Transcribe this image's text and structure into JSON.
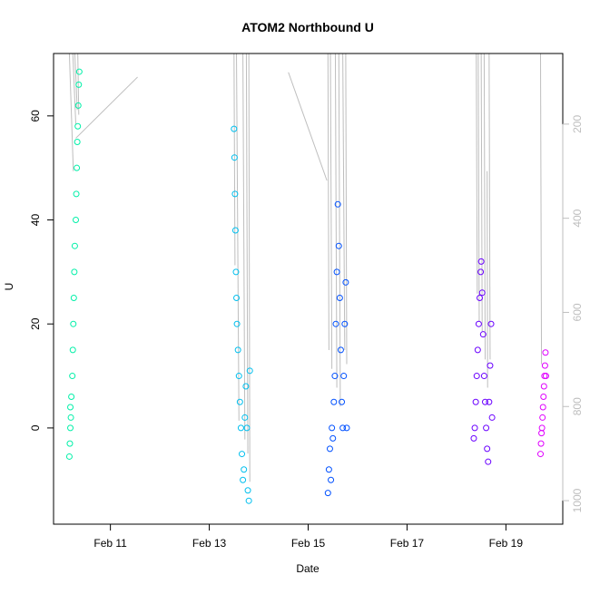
{
  "chart_data": {
    "type": "scatter",
    "title": "ATOM2 Northbound U",
    "xlabel": "Date",
    "ylabel": "U",
    "x_ticks": [
      "Feb 11",
      "Feb 13",
      "Feb 15",
      "Feb 17",
      "Feb 19"
    ],
    "x_tick_days": [
      11,
      13,
      15,
      17,
      19
    ],
    "xlim_days": [
      9.85,
      20.15
    ],
    "ylim": [
      -18.5,
      72
    ],
    "y_ticks": [
      0,
      20,
      40,
      60
    ],
    "y2_ticks": [
      200,
      400,
      600,
      800,
      1000
    ],
    "y2lim": [
      50,
      1050
    ],
    "grid": false,
    "legend": "none",
    "colors": {
      "axis": "#000000",
      "secondary_axis": "#bebebe",
      "secondary_lines": "#bebebe",
      "marker_fill": "none"
    },
    "series": [
      {
        "color": "#00f0a8",
        "points": [
          [
            10.17,
            -5.5
          ],
          [
            10.18,
            -3
          ],
          [
            10.19,
            0
          ],
          [
            10.2,
            2
          ],
          [
            10.19,
            4
          ],
          [
            10.21,
            6
          ],
          [
            10.23,
            10
          ],
          [
            10.24,
            15
          ],
          [
            10.25,
            20
          ],
          [
            10.26,
            25
          ],
          [
            10.27,
            30
          ],
          [
            10.28,
            35
          ],
          [
            10.3,
            40
          ],
          [
            10.31,
            45
          ],
          [
            10.32,
            50
          ],
          [
            10.33,
            55
          ],
          [
            10.34,
            58
          ],
          [
            10.35,
            62
          ],
          [
            10.36,
            66
          ],
          [
            10.37,
            68.5
          ]
        ]
      },
      {
        "color": "#00bfee",
        "points": [
          [
            13.5,
            57.5
          ],
          [
            13.51,
            52
          ],
          [
            13.52,
            45
          ],
          [
            13.53,
            38
          ],
          [
            13.54,
            30
          ],
          [
            13.55,
            25
          ],
          [
            13.56,
            20
          ],
          [
            13.58,
            15
          ],
          [
            13.6,
            10
          ],
          [
            13.62,
            5
          ],
          [
            13.64,
            0
          ],
          [
            13.66,
            -5
          ],
          [
            13.68,
            -10
          ],
          [
            13.7,
            -8
          ],
          [
            13.72,
            2
          ],
          [
            13.74,
            8
          ],
          [
            13.76,
            0
          ],
          [
            13.78,
            -12
          ],
          [
            13.8,
            -14
          ],
          [
            13.82,
            11
          ]
        ]
      },
      {
        "color": "#0050ff",
        "points": [
          [
            15.4,
            -12.5
          ],
          [
            15.42,
            -8
          ],
          [
            15.44,
            -4
          ],
          [
            15.46,
            -10
          ],
          [
            15.48,
            0
          ],
          [
            15.5,
            -2
          ],
          [
            15.52,
            5
          ],
          [
            15.54,
            10
          ],
          [
            15.56,
            20
          ],
          [
            15.58,
            30
          ],
          [
            15.6,
            43
          ],
          [
            15.62,
            35
          ],
          [
            15.64,
            25
          ],
          [
            15.66,
            15
          ],
          [
            15.68,
            5
          ],
          [
            15.7,
            0
          ],
          [
            15.72,
            10
          ],
          [
            15.74,
            20
          ],
          [
            15.76,
            28
          ],
          [
            15.78,
            0
          ]
        ]
      },
      {
        "color": "#6a00ff",
        "points": [
          [
            18.35,
            -2
          ],
          [
            18.37,
            0
          ],
          [
            18.39,
            5
          ],
          [
            18.41,
            10
          ],
          [
            18.43,
            15
          ],
          [
            18.45,
            20
          ],
          [
            18.47,
            25
          ],
          [
            18.49,
            30
          ],
          [
            18.5,
            32
          ],
          [
            18.52,
            26
          ],
          [
            18.54,
            18
          ],
          [
            18.56,
            10
          ],
          [
            18.58,
            5
          ],
          [
            18.6,
            0
          ],
          [
            18.62,
            -4
          ],
          [
            18.64,
            -6.5
          ],
          [
            18.66,
            5
          ],
          [
            18.68,
            12
          ],
          [
            18.7,
            20
          ],
          [
            18.72,
            2
          ]
        ]
      },
      {
        "color": "#e000ff",
        "points": [
          [
            19.7,
            -5
          ],
          [
            19.71,
            -3
          ],
          [
            19.72,
            -1
          ],
          [
            19.73,
            0
          ],
          [
            19.74,
            2
          ],
          [
            19.75,
            4
          ],
          [
            19.76,
            6
          ],
          [
            19.77,
            8
          ],
          [
            19.78,
            10
          ],
          [
            19.79,
            12
          ],
          [
            19.8,
            14.5
          ],
          [
            19.81,
            10
          ]
        ]
      }
    ],
    "secondary_series": [
      {
        "segments": [
          [
            10.17,
            50,
            10.25,
            300
          ],
          [
            10.24,
            50,
            10.3,
            200
          ],
          [
            10.28,
            50,
            10.33,
            170
          ],
          [
            10.34,
            50,
            10.36,
            180
          ],
          [
            10.3,
            230,
            11.55,
            100
          ]
        ]
      },
      {
        "segments": [
          [
            13.5,
            50,
            13.52,
            500
          ],
          [
            13.55,
            50,
            13.6,
            830
          ],
          [
            13.68,
            50,
            13.72,
            870
          ],
          [
            13.75,
            50,
            13.78,
            900
          ],
          [
            13.8,
            50,
            13.82,
            960
          ],
          [
            14.6,
            90,
            15.38,
            320
          ]
        ]
      },
      {
        "segments": [
          [
            15.4,
            50,
            15.42,
            680
          ],
          [
            15.45,
            50,
            15.48,
            720
          ],
          [
            15.55,
            50,
            15.58,
            760
          ],
          [
            15.62,
            50,
            15.65,
            800
          ],
          [
            15.7,
            50,
            15.74,
            680
          ],
          [
            15.76,
            50,
            15.78,
            710
          ]
        ]
      },
      {
        "segments": [
          [
            18.4,
            50,
            18.42,
            560
          ],
          [
            18.44,
            50,
            18.46,
            620
          ],
          [
            18.5,
            50,
            18.52,
            640
          ],
          [
            18.56,
            50,
            18.58,
            700
          ],
          [
            18.62,
            300,
            18.63,
            760
          ],
          [
            18.66,
            50,
            18.68,
            700
          ]
        ]
      },
      {
        "segments": [
          [
            19.7,
            50,
            19.72,
            710
          ]
        ]
      }
    ]
  }
}
